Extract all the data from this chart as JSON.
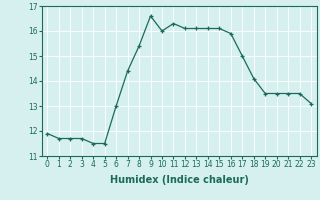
{
  "xlabel": "Humidex (Indice chaleur)",
  "x": [
    0,
    1,
    2,
    3,
    4,
    5,
    6,
    7,
    8,
    9,
    10,
    11,
    12,
    13,
    14,
    15,
    16,
    17,
    18,
    19,
    20,
    21,
    22,
    23
  ],
  "y": [
    11.9,
    11.7,
    11.7,
    11.7,
    11.5,
    11.5,
    13.0,
    14.4,
    15.4,
    16.6,
    16.0,
    16.3,
    16.1,
    16.1,
    16.1,
    16.1,
    15.9,
    15.0,
    14.1,
    13.5,
    13.5,
    13.5,
    13.5,
    13.1
  ],
  "line_color": "#1a6b5a",
  "marker": "+",
  "marker_size": 3,
  "bg_color": "#d6f0ef",
  "grid_color": "#ffffff",
  "ylim": [
    11,
    17
  ],
  "yticks": [
    11,
    12,
    13,
    14,
    15,
    16,
    17
  ],
  "xlim": [
    -0.5,
    23.5
  ],
  "xlabel_fontsize": 7,
  "tick_fontsize": 5.5
}
